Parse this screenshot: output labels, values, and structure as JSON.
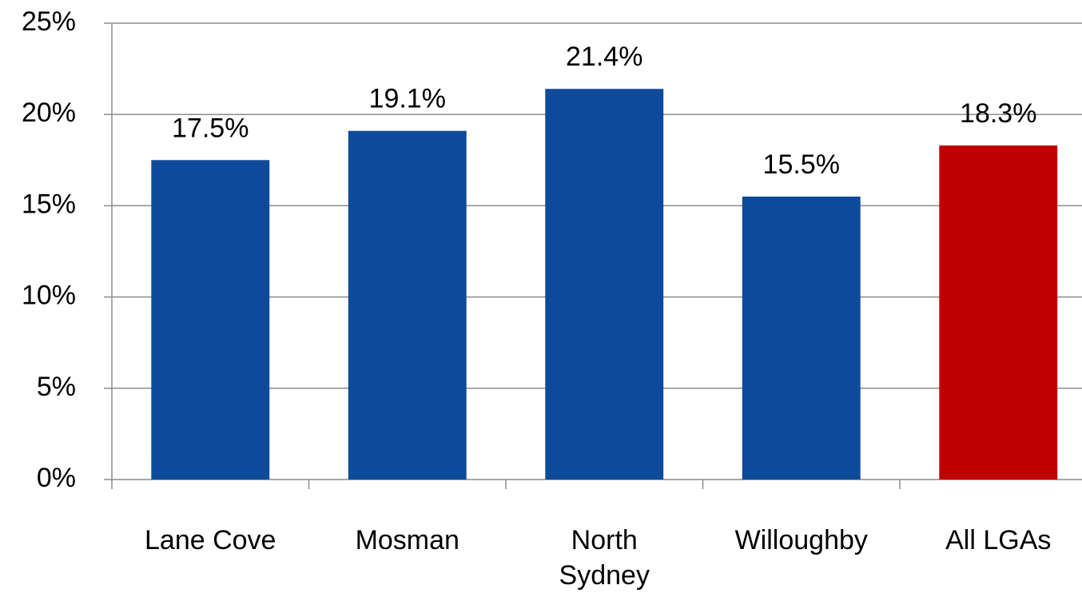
{
  "chart_data": {
    "type": "bar",
    "categories": [
      "Lane Cove",
      "Mosman",
      "North Sydney",
      "Willoughby",
      "All LGAs"
    ],
    "values": [
      17.5,
      19.1,
      21.4,
      15.5,
      18.3
    ],
    "value_labels": [
      "17.5%",
      "19.1%",
      "21.4%",
      "15.5%",
      "18.3%"
    ],
    "colors": [
      "#0e4a9a",
      "#0e4a9a",
      "#0e4a9a",
      "#0e4a9a",
      "#c00000"
    ],
    "ylim": [
      0,
      25
    ],
    "yticks": [
      {
        "value": 0,
        "label": "0%"
      },
      {
        "value": 5,
        "label": "5%"
      },
      {
        "value": 10,
        "label": "10%"
      },
      {
        "value": 15,
        "label": "15%"
      },
      {
        "value": 20,
        "label": "20%"
      },
      {
        "value": 25,
        "label": "25%"
      }
    ],
    "grid": true
  }
}
